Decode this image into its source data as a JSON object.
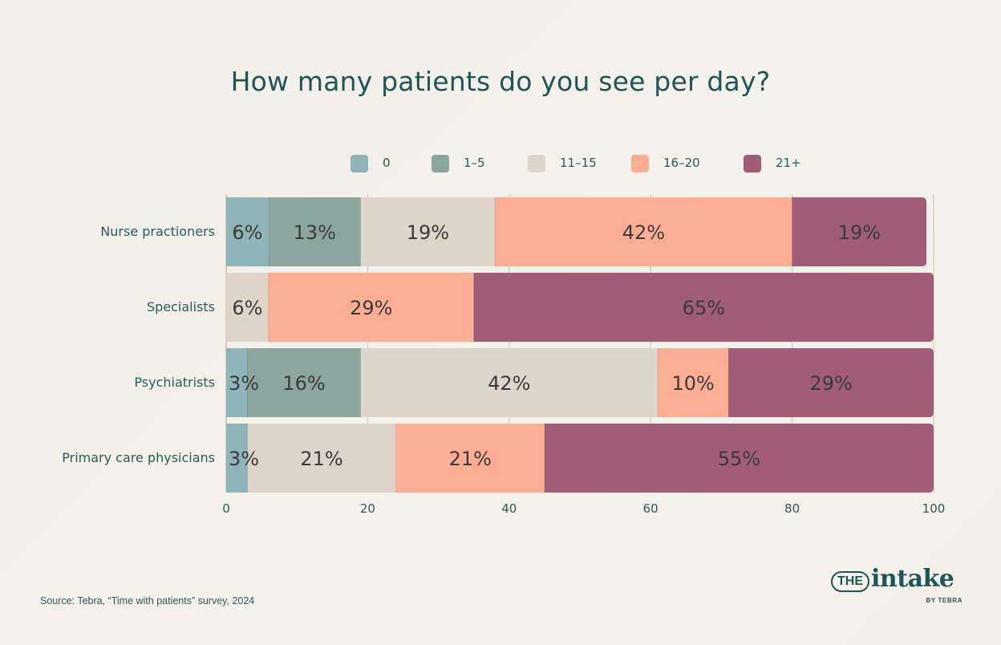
{
  "chart_data": {
    "type": "bar",
    "orientation": "horizontal",
    "stacked": true,
    "title": "How many patients do you see per day?",
    "categories": [
      "Nurse practioners",
      "Specialists",
      "Psychiatrists",
      "Primary care physicians"
    ],
    "series": [
      {
        "name": "0",
        "color": "#8fb5ba",
        "values": [
          6,
          0,
          3,
          3
        ]
      },
      {
        "name": "1–5",
        "color": "#8ba59f",
        "values": [
          13,
          0,
          16,
          0
        ]
      },
      {
        "name": "11–15",
        "color": "#dfd4c9",
        "values": [
          19,
          6,
          42,
          21
        ]
      },
      {
        "name": "16–20",
        "color": "#fcae94",
        "values": [
          42,
          29,
          10,
          21
        ]
      },
      {
        "name": "21+",
        "color": "#a15c77",
        "values": [
          19,
          65,
          29,
          55
        ]
      }
    ],
    "data_labels": [
      [
        "6%",
        "13%",
        "19%",
        "42%",
        "19%"
      ],
      [
        "6%",
        "29%",
        "65%"
      ],
      [
        "3%",
        "16%",
        "42%",
        "10%",
        "29%"
      ],
      [
        "3%",
        "21%",
        "21%",
        "55%"
      ]
    ],
    "xlim": [
      0,
      100
    ],
    "xticks": [
      "0",
      "20",
      "40",
      "60",
      "80",
      "100"
    ],
    "grid": true,
    "legend_position": "top"
  },
  "source": "Source: Tebra, “Time with patients” survey, 2024",
  "logo": {
    "the": "THE",
    "name": "intake",
    "byline": "BY TEBRA"
  }
}
